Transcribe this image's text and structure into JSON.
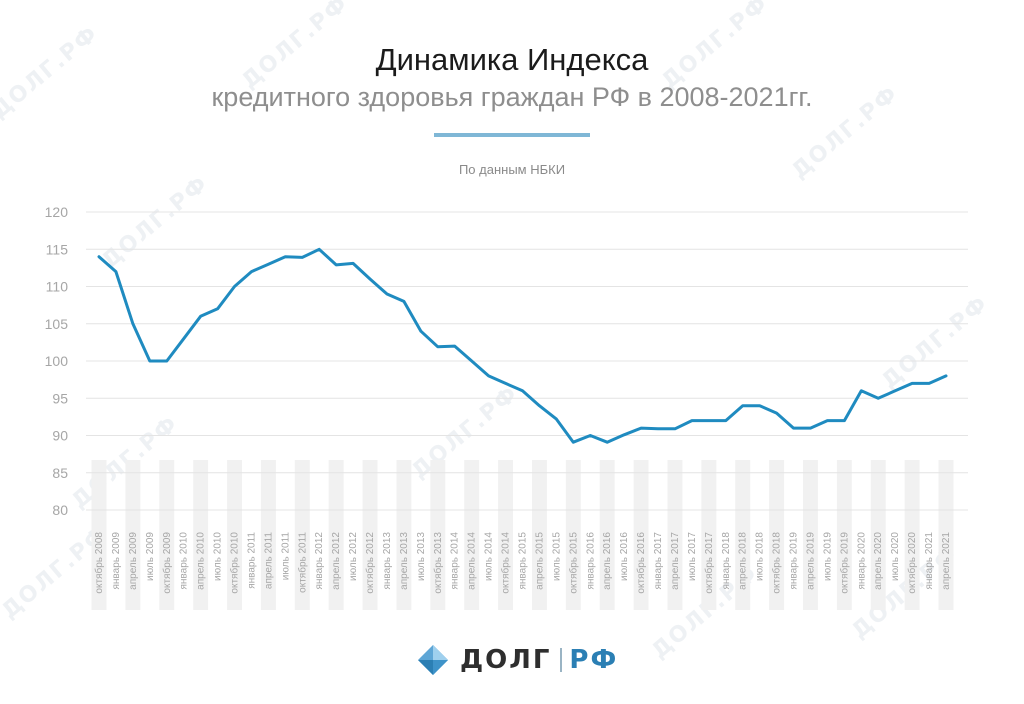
{
  "header": {
    "title": "Динамика Индекса",
    "subtitle": "кредитного здоровья граждан РФ в 2008-2021гг.",
    "source": "По данным НБКИ"
  },
  "logo": {
    "name": "ДОЛГ",
    "suffix": "РФ",
    "watermark": "ДОЛГ.РФ"
  },
  "colors": {
    "line": "#1f8bc0",
    "accent": "#7fb7d6",
    "stripe": "#f1f1f1",
    "grid": "#e4e4e4",
    "axis_text": "#a6a6a6"
  },
  "chart_data": {
    "type": "line",
    "title": "Динамика Индекса кредитного здоровья граждан РФ в 2008-2021гг.",
    "xlabel": "",
    "ylabel": "",
    "ylim": [
      80,
      120
    ],
    "yticks": [
      120,
      115,
      110,
      105,
      100,
      95,
      90,
      85,
      80
    ],
    "grid": true,
    "categories": [
      "октябрь 2008",
      "январь 2009",
      "апрель 2009",
      "июль 2009",
      "октябрь 2009",
      "январь 2010",
      "апрель 2010",
      "июль 2010",
      "октябрь 2010",
      "январь 2011",
      "апрель 2011",
      "июль 2011",
      "октябрь 2011",
      "январь 2012",
      "апрель 2012",
      "июль 2012",
      "октябрь 2012",
      "январь 2013",
      "апрель 2013",
      "июль 2013",
      "октябрь 2013",
      "январь 2014",
      "апрель 2014",
      "июль 2014",
      "октябрь 2014",
      "январь 2015",
      "апрель 2015",
      "июль 2015",
      "октябрь 2015",
      "январь 2016",
      "апрель 2016",
      "июль 2016",
      "октябрь 2016",
      "январь 2017",
      "апрель 2017",
      "июль 2017",
      "октябрь 2017",
      "январь 2018",
      "апрель 2018",
      "июль 2018",
      "октябрь 2018",
      "январь 2019",
      "апрель 2019",
      "июль 2019",
      "октябрь 2019",
      "январь 2020",
      "апрель 2020",
      "июль 2020",
      "октябрь 2020",
      "январь 2021",
      "апрель 2021"
    ],
    "series": [
      {
        "values": [
          114,
          112,
          105,
          100,
          100,
          103,
          106,
          107,
          110,
          112,
          113,
          114,
          113.9,
          115,
          112.9,
          113.1,
          111,
          109,
          108,
          104,
          101.9,
          102,
          100,
          98,
          97,
          96,
          94,
          92.2,
          89.1,
          90,
          89.1,
          90.1,
          91,
          90.9,
          90.9,
          92,
          92,
          92,
          94,
          94,
          93,
          91,
          91,
          92,
          92,
          96,
          95,
          96,
          97,
          97,
          98
        ]
      }
    ]
  }
}
